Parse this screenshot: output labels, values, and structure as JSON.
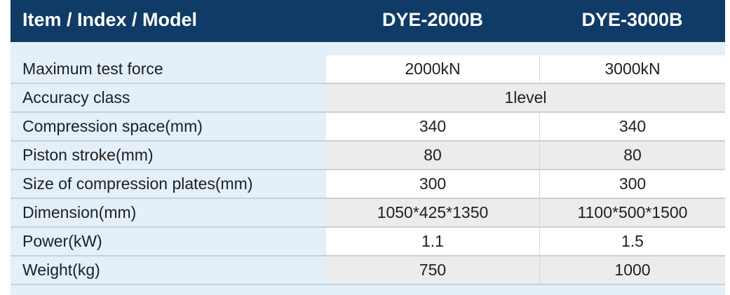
{
  "header": {
    "label": "Item / Index / Model",
    "models": [
      "DYE-2000B",
      "DYE-3000B"
    ]
  },
  "rows": [
    {
      "label": "Maximum test force",
      "values": [
        "2000kN",
        "3000kN"
      ]
    },
    {
      "label": "Accuracy class",
      "merged_value": "1level"
    },
    {
      "label": "Compression space(mm)",
      "values": [
        "340",
        "340"
      ]
    },
    {
      "label": "Piston stroke(mm)",
      "values": [
        "80",
        "80"
      ]
    },
    {
      "label": "Size of compression plates(mm)",
      "values": [
        "300",
        "300"
      ]
    },
    {
      "label": "Dimension(mm)",
      "values": [
        "1050*425*1350",
        "1100*500*1500"
      ]
    },
    {
      "label": "Power(kW)",
      "values": [
        "1.1",
        "1.5"
      ]
    },
    {
      "label": "Weight(kg)",
      "values": [
        "750",
        "1000"
      ]
    }
  ],
  "colors": {
    "header_bg": "#0f3b66",
    "label_bg": "#e3eff9",
    "row_white": "#ffffff",
    "row_gray": "#ececec"
  }
}
